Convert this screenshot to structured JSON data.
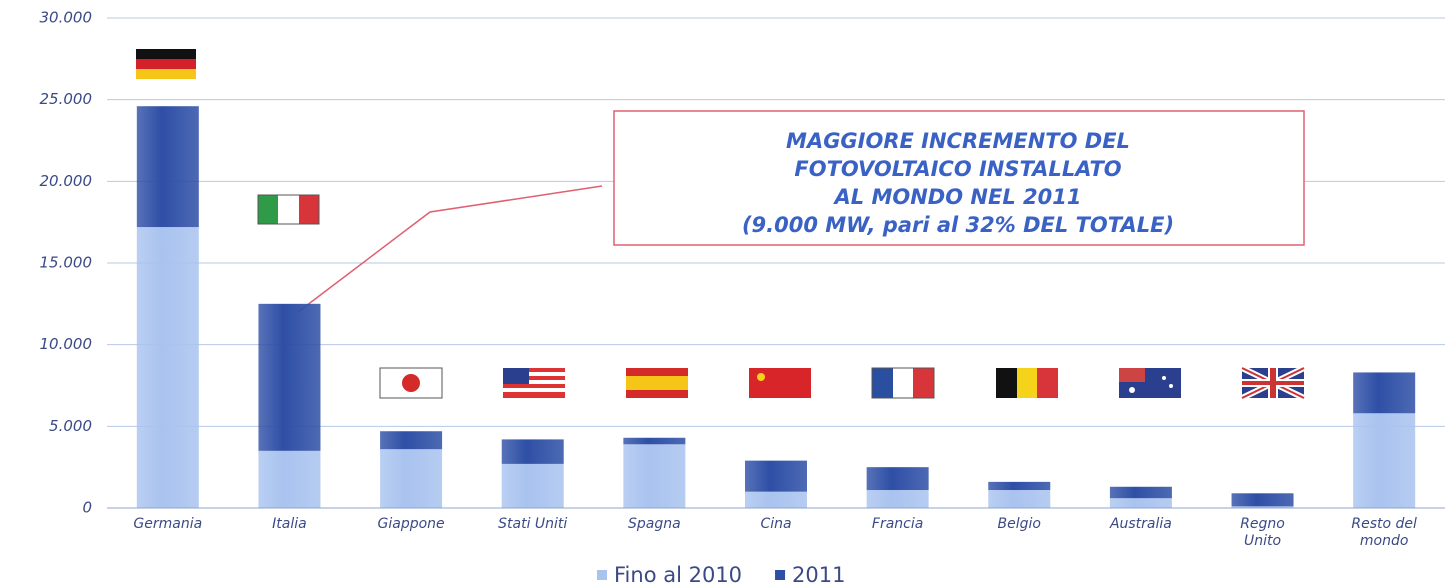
{
  "chart_data": {
    "type": "bar",
    "stacked": true,
    "categories": [
      "Germania",
      "Italia",
      "Giappone",
      "Stati Uniti",
      "Spagna",
      "Cina",
      "Francia",
      "Belgio",
      "Australia",
      "Regno Unito",
      "Resto del mondo"
    ],
    "series": [
      {
        "name": "Fino al 2010",
        "color": "#a9c3ef",
        "values": [
          17200,
          3500,
          3600,
          2700,
          3900,
          1000,
          1100,
          1100,
          600,
          100,
          5800
        ]
      },
      {
        "name": "2011",
        "color": "#2e4fa6",
        "values": [
          7400,
          9000,
          1100,
          1500,
          400,
          1900,
          1400,
          500,
          700,
          800,
          2500
        ]
      }
    ],
    "ylim": [
      0,
      30000
    ],
    "yticks": [
      0,
      {
        "value": 5000,
        "label": "5.000"
      },
      {
        "value": 10000,
        "label": "10.000"
      },
      {
        "value": 15000,
        "label": "15.000"
      },
      {
        "value": 20000,
        "label": "20.000"
      },
      {
        "value": 25000,
        "label": "25.000"
      },
      {
        "value": 30000,
        "label": "30.000"
      }
    ],
    "grid": true,
    "annotation": [
      "MAGGIORE INCREMENTO DEL",
      "FOTOVOLTAICO INSTALLATO",
      "AL MONDO NEL 2011",
      "(9.000 MW, pari al 32% DEL TOTALE)"
    ]
  }
}
